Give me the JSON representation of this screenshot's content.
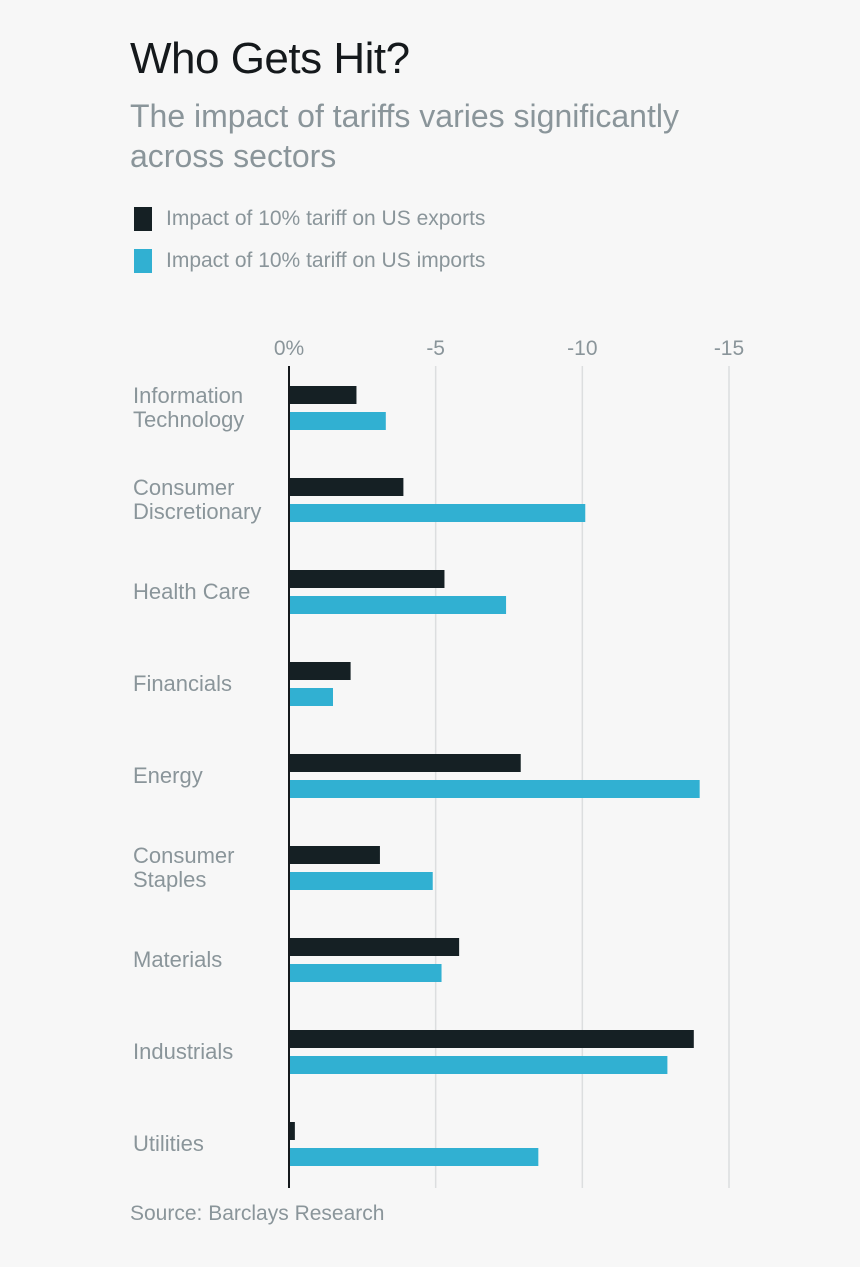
{
  "title": "Who Gets Hit?",
  "subtitle": "The impact of tariffs varies significantly across sectors",
  "source": "Source: Barclays Research",
  "legend": [
    {
      "label": "Impact of 10% tariff on US exports",
      "color": "#152024"
    },
    {
      "label": "Impact of 10% tariff on US imports",
      "color": "#31b0d2"
    }
  ],
  "chart_data": {
    "type": "bar",
    "orientation": "horizontal",
    "title": "Who Gets Hit?",
    "subtitle": "The impact of tariffs varies significantly across sectors",
    "xlim": [
      0,
      -15
    ],
    "ticks": [
      0,
      -5,
      -10,
      -15
    ],
    "tick_labels": [
      "0%",
      "-5",
      "-10",
      "-15"
    ],
    "categories": [
      "Information Technology",
      "Consumer Discretionary",
      "Health Care",
      "Financials",
      "Energy",
      "Consumer Staples",
      "Materials",
      "Industrials",
      "Utilities"
    ],
    "category_lines": [
      [
        "Information",
        "Technology"
      ],
      [
        "Consumer",
        "Discretionary"
      ],
      [
        "Health Care"
      ],
      [
        "Financials"
      ],
      [
        "Energy"
      ],
      [
        "Consumer",
        "Staples"
      ],
      [
        "Materials"
      ],
      [
        "Industrials"
      ],
      [
        "Utilities"
      ]
    ],
    "series": [
      {
        "name": "Impact of 10% tariff on US exports",
        "color": "#152024",
        "values": [
          -2.3,
          -3.9,
          -5.3,
          -2.1,
          -7.9,
          -3.1,
          -5.8,
          -13.8,
          -0.2
        ]
      },
      {
        "name": "Impact of 10% tariff on US imports",
        "color": "#31b0d2",
        "values": [
          -3.3,
          -10.1,
          -7.4,
          -1.5,
          -14.0,
          -4.9,
          -5.2,
          -12.9,
          -8.5
        ]
      }
    ],
    "grid": true,
    "legend_position": "top-left"
  }
}
